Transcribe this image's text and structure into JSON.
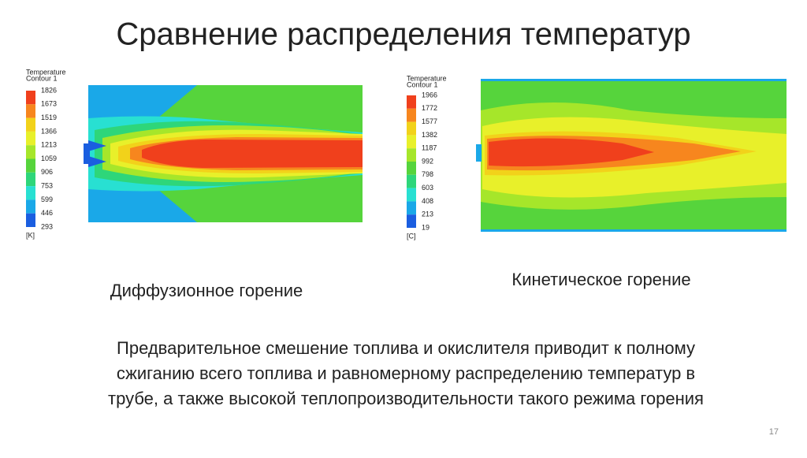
{
  "title": "Сравнение распределения температур",
  "panels": [
    {
      "legend_title": [
        "Temperature",
        "Contour 1"
      ],
      "legend_values": [
        1826,
        1673,
        1519,
        1366,
        1213,
        1059,
        906,
        753,
        599,
        446,
        293
      ],
      "legend_colors": [
        "#f0401c",
        "#f7861e",
        "#f2d21a",
        "#e8f02a",
        "#a6e62a",
        "#56d43c",
        "#2ed67a",
        "#28e0d2",
        "#1aa8e8",
        "#1a5ee0"
      ],
      "unit": "[K]",
      "caption": "Диффузионное горение"
    },
    {
      "legend_title": [
        "Temperature",
        "Contour 1"
      ],
      "legend_values": [
        1966,
        1772,
        1577,
        1382,
        1187,
        992,
        798,
        603,
        408,
        213,
        19
      ],
      "legend_colors": [
        "#f0401c",
        "#f7861e",
        "#f2d21a",
        "#e8f02a",
        "#a6e62a",
        "#56d43c",
        "#2ed67a",
        "#28e0d2",
        "#1aa8e8",
        "#1a5ee0"
      ],
      "unit": "[C]",
      "caption": "Кинетическое горение"
    }
  ],
  "body": [
    "Предварительное смешение топлива и окислителя приводит к полному",
    "сжиганию всего топлива и равномерному распределению температур в",
    "трубе, а также высокой теплопроизводительности такого режима горения"
  ],
  "page_number": "17"
}
